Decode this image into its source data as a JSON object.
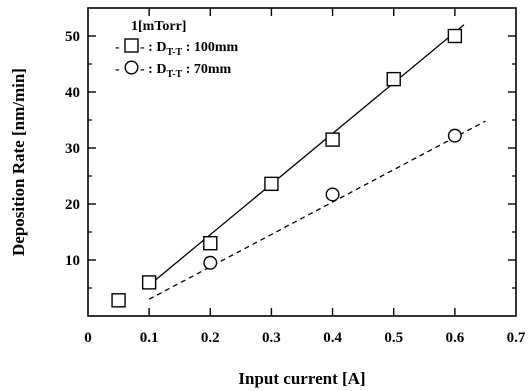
{
  "chart_data": {
    "type": "line",
    "xlabel": "Input current [A]",
    "ylabel": "Deposition Rate [nm/min]",
    "xlim": [
      0,
      0.7
    ],
    "ylim": [
      0,
      55
    ],
    "x_ticks": [
      "0",
      "0.1",
      "0.2",
      "0.3",
      "0.4",
      "0.5",
      "0.6",
      "0.7"
    ],
    "y_ticks": [
      "10",
      "20",
      "30",
      "40",
      "50"
    ],
    "legend": {
      "title": "1[mTorr]",
      "position": "top-left",
      "entries": [
        {
          "prefix": "- ",
          "marker": "square",
          "text_prefix": " - : D",
          "subscript": "T-T",
          "text_suffix": " : 100mm"
        },
        {
          "prefix": "- ",
          "marker": "circle",
          "text_prefix": " - : D",
          "subscript": "T-T",
          "text_suffix": " :  70mm"
        }
      ]
    },
    "series": [
      {
        "marker": "square",
        "line_style": "solid",
        "x": [
          0.05,
          0.1,
          0.2,
          0.3,
          0.4,
          0.5,
          0.6
        ],
        "y": [
          2.8,
          6.0,
          13.0,
          23.6,
          31.5,
          42.3,
          50.0
        ],
        "fit": {
          "x": [
            0.1,
            0.615
          ],
          "y": [
            5.5,
            52.0
          ]
        }
      },
      {
        "marker": "circle",
        "line_style": "dashed",
        "x": [
          0.2,
          0.4,
          0.6
        ],
        "y": [
          9.5,
          21.7,
          32.2
        ],
        "fit": {
          "x": [
            0.1,
            0.65
          ],
          "y": [
            3.0,
            34.8
          ]
        }
      }
    ]
  }
}
